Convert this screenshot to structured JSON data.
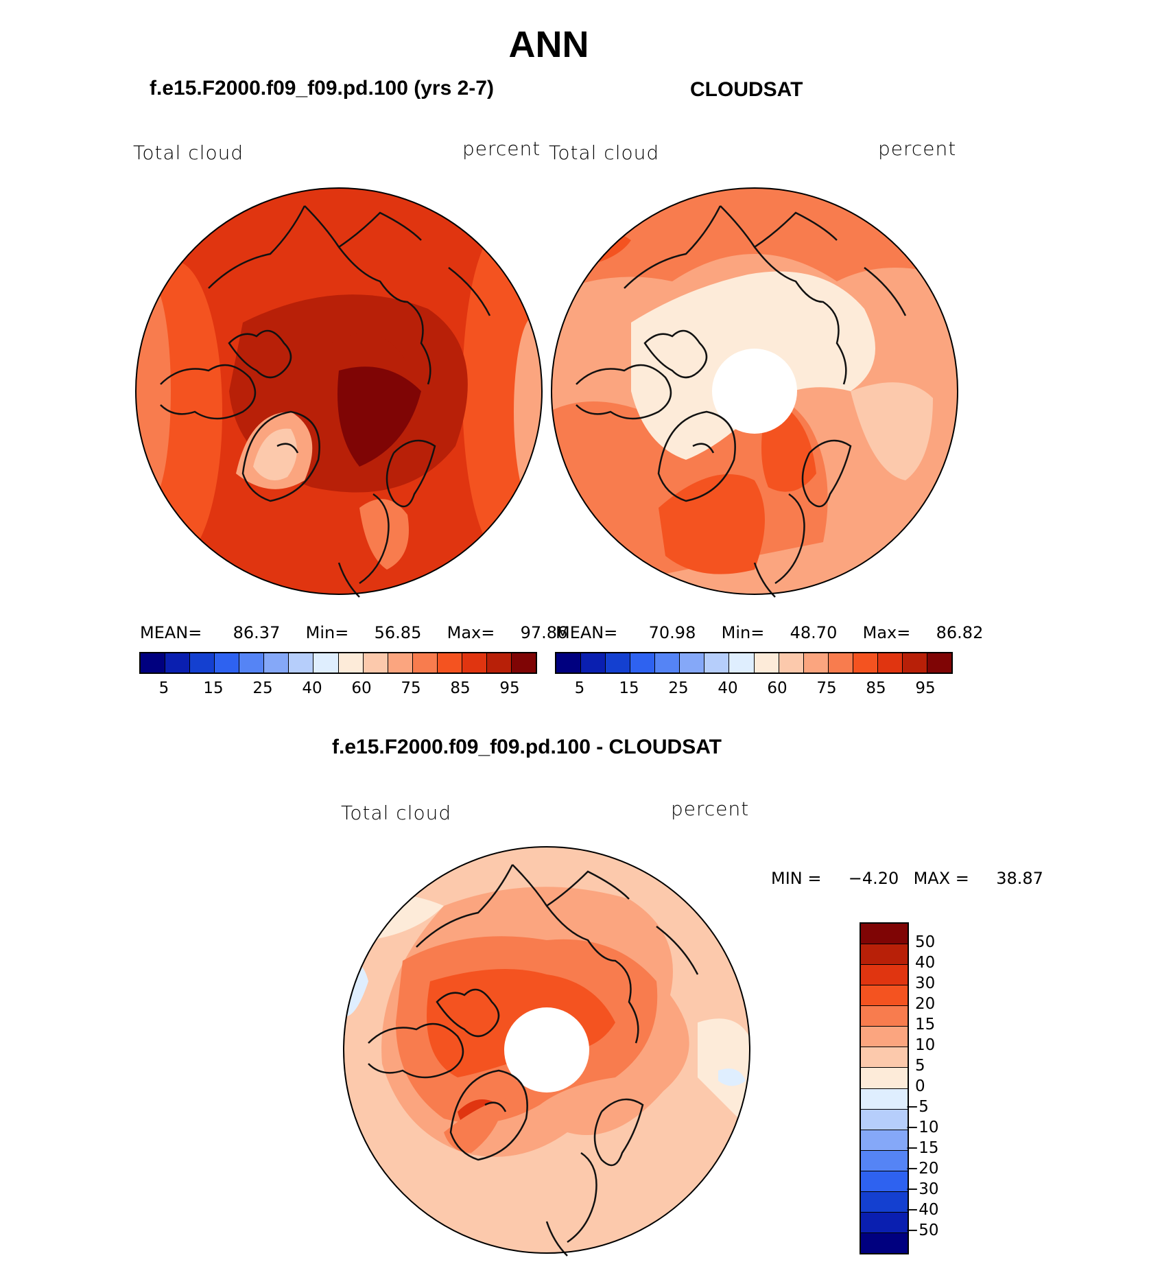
{
  "title": "ANN",
  "panels": [
    {
      "title": "f.e15.F2000.f09_f09.pd.100 (yrs 2-7)",
      "left_label": "Total cloud",
      "right_label": "percent",
      "stats": {
        "mean_label": "MEAN=",
        "mean": "86.37",
        "min_label": "Min=",
        "min": "56.85",
        "max_label": "Max=",
        "max": "97.86"
      }
    },
    {
      "title": "CLOUDSAT",
      "left_label": "Total cloud",
      "right_label": "percent",
      "stats": {
        "mean_label": "MEAN=",
        "mean": "70.98",
        "min_label": "Min=",
        "min": "48.70",
        "max_label": "Max=",
        "max": "86.82"
      }
    }
  ],
  "colorbar_top": {
    "colors": [
      "#00007f",
      "#0a1fb0",
      "#1440d0",
      "#2e62f0",
      "#5584f5",
      "#85a8f8",
      "#b6cefb",
      "#dfeefe",
      "#fdebd9",
      "#fcc9ac",
      "#fba57f",
      "#f87c4e",
      "#f45320",
      "#e03510",
      "#b82008",
      "#7f0505"
    ],
    "labels": [
      "5",
      "15",
      "25",
      "40",
      "60",
      "75",
      "85",
      "95"
    ]
  },
  "diff_panel": {
    "title": "f.e15.F2000.f09_f09.pd.100 - CLOUDSAT",
    "left_label": "Total cloud",
    "right_label": "percent",
    "minmax": {
      "min_label": "MIN =",
      "min": "−4.20",
      "max_label": "MAX =",
      "max": "38.87"
    }
  },
  "colorbar_diff": {
    "colors": [
      "#7f0505",
      "#b82008",
      "#e03510",
      "#f45320",
      "#f87c4e",
      "#fba57f",
      "#fcc9ac",
      "#fdebd9",
      "#dfeefe",
      "#b6cefb",
      "#85a8f8",
      "#5584f5",
      "#2e62f0",
      "#1440d0",
      "#0a1fb0",
      "#00007f"
    ],
    "labels": [
      "50",
      "40",
      "30",
      "20",
      "15",
      "10",
      "5",
      "0",
      "−5",
      "−10",
      "−15",
      "−20",
      "−30",
      "−40",
      "−50"
    ]
  }
}
